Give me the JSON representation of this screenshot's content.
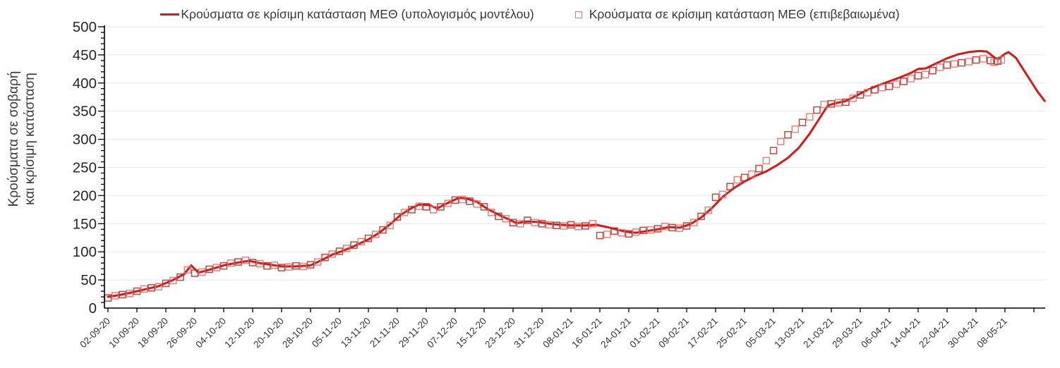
{
  "colors": {
    "line_red": "#dc1717",
    "square_dark": "#b03028",
    "square_light": "#e2736d",
    "grid": "#e7e7e7",
    "axis": "#000000",
    "tick_text": "#262626",
    "xlabel_text": "#333333",
    "legend_text": "#383838",
    "legend_square_border": "#cd7f7c"
  },
  "chart_data": {
    "type": "line",
    "title": "",
    "ylabel": "Κρούσματα σε σοβαρή και κρίσιμη κατάσταση",
    "ylabel_line1": "Κρούσματα σε σοβαρή",
    "ylabel_line2": "και κρίσιμη κατάσταση",
    "xlabel": "",
    "ylim": [
      0,
      500
    ],
    "y_ticks": [
      0,
      50,
      100,
      150,
      200,
      250,
      300,
      350,
      400,
      450,
      500
    ],
    "y_minor_step": 10,
    "grid": "horizontal gridlines every 50, light gray",
    "legend_position": "top-center",
    "x_tick_labels": [
      "02-09-20",
      "10-09-20",
      "18-09-20",
      "26-09-20",
      "04-10-20",
      "12-10-20",
      "20-10-20",
      "28-10-20",
      "05-11-20",
      "13-11-20",
      "21-11-20",
      "29-11-20",
      "07-12-20",
      "15-12-20",
      "23-12-20",
      "31-12-20",
      "08-01-21",
      "16-01-21",
      "24-01-21",
      "01-02-21",
      "09-02-21",
      "17-02-21",
      "25-02-21",
      "05-03-21",
      "13-03-21",
      "21-03-21",
      "29-03-21",
      "06-04-21",
      "14-04-21",
      "22-04-21",
      "30-04-21",
      "08-05-21"
    ],
    "unlabeled_extra_tick": "16-05-21",
    "series": [
      {
        "name": "Κρούσματα σε κρίσιμη κατάσταση ΜΕΘ (υπολογισμός μοντέλου)",
        "kind": "line",
        "points": [
          [
            "02-09-20",
            20
          ],
          [
            "05-09-20",
            23
          ],
          [
            "08-09-20",
            27
          ],
          [
            "12-09-20",
            33
          ],
          [
            "16-09-20",
            39
          ],
          [
            "20-09-20",
            50
          ],
          [
            "23-09-20",
            60
          ],
          [
            "25-09-20",
            76
          ],
          [
            "27-09-20",
            63
          ],
          [
            "30-09-20",
            68
          ],
          [
            "04-10-20",
            76
          ],
          [
            "08-10-20",
            81
          ],
          [
            "11-10-20",
            84
          ],
          [
            "14-10-20",
            80
          ],
          [
            "17-10-20",
            77
          ],
          [
            "20-10-20",
            74
          ],
          [
            "24-10-20",
            74
          ],
          [
            "28-10-20",
            76
          ],
          [
            "31-10-20",
            85
          ],
          [
            "03-11-20",
            95
          ],
          [
            "06-11-20",
            102
          ],
          [
            "09-11-20",
            110
          ],
          [
            "13-11-20",
            122
          ],
          [
            "16-11-20",
            134
          ],
          [
            "19-11-20",
            149
          ],
          [
            "22-11-20",
            166
          ],
          [
            "25-11-20",
            178
          ],
          [
            "27-11-20",
            184
          ],
          [
            "30-11-20",
            183
          ],
          [
            "02-12-20",
            177
          ],
          [
            "04-12-20",
            184
          ],
          [
            "06-12-20",
            190
          ],
          [
            "08-12-20",
            196
          ],
          [
            "10-12-20",
            195
          ],
          [
            "13-12-20",
            189
          ],
          [
            "16-12-20",
            176
          ],
          [
            "19-12-20",
            166
          ],
          [
            "22-12-20",
            157
          ],
          [
            "24-12-20",
            151
          ],
          [
            "27-12-20",
            154
          ],
          [
            "30-12-20",
            153
          ],
          [
            "02-01-21",
            150
          ],
          [
            "05-01-21",
            148
          ],
          [
            "08-01-21",
            147
          ],
          [
            "12-01-21",
            147
          ],
          [
            "15-01-21",
            148
          ],
          [
            "18-01-21",
            144
          ],
          [
            "21-01-21",
            139
          ],
          [
            "24-01-21",
            135
          ],
          [
            "26-01-21",
            134
          ],
          [
            "29-01-21",
            137
          ],
          [
            "01-02-21",
            140
          ],
          [
            "04-02-21",
            144
          ],
          [
            "07-02-21",
            143
          ],
          [
            "10-02-21",
            149
          ],
          [
            "13-02-21",
            161
          ],
          [
            "16-02-21",
            178
          ],
          [
            "19-02-21",
            198
          ],
          [
            "22-02-21",
            213
          ],
          [
            "25-02-21",
            225
          ],
          [
            "28-02-21",
            235
          ],
          [
            "03-03-21",
            243
          ],
          [
            "06-03-21",
            254
          ],
          [
            "09-03-21",
            267
          ],
          [
            "12-03-21",
            285
          ],
          [
            "15-03-21",
            310
          ],
          [
            "18-03-21",
            340
          ],
          [
            "20-03-21",
            360
          ],
          [
            "22-03-21",
            364
          ],
          [
            "25-03-21",
            368
          ],
          [
            "28-03-21",
            378
          ],
          [
            "31-03-21",
            388
          ],
          [
            "03-04-21",
            396
          ],
          [
            "06-04-21",
            403
          ],
          [
            "09-04-21",
            410
          ],
          [
            "12-04-21",
            418
          ],
          [
            "14-04-21",
            425
          ],
          [
            "16-04-21",
            426
          ],
          [
            "19-04-21",
            435
          ],
          [
            "22-04-21",
            444
          ],
          [
            "25-04-21",
            451
          ],
          [
            "28-04-21",
            455
          ],
          [
            "01-05-21",
            457
          ],
          [
            "03-05-21",
            456
          ],
          [
            "05-05-21",
            446
          ],
          [
            "06-05-21",
            442
          ],
          [
            "08-05-21",
            452
          ],
          [
            "09-05-21",
            455
          ],
          [
            "11-05-21",
            445
          ],
          [
            "13-05-21",
            425
          ],
          [
            "15-05-21",
            405
          ],
          [
            "17-05-21",
            385
          ],
          [
            "19-05-21",
            368
          ]
        ]
      },
      {
        "name": "Κρούσματα σε κρίσιμη κατάσταση ΜΕΘ (επιβεβαιωμένα)",
        "kind": "scatter-open-square",
        "points": [
          [
            "02-09-20",
            18
          ],
          [
            "04-09-20",
            22
          ],
          [
            "06-09-20",
            24
          ],
          [
            "08-09-20",
            26
          ],
          [
            "10-09-20",
            30
          ],
          [
            "12-09-20",
            34
          ],
          [
            "14-09-20",
            36
          ],
          [
            "16-09-20",
            38
          ],
          [
            "18-09-20",
            44
          ],
          [
            "20-09-20",
            49
          ],
          [
            "22-09-20",
            55
          ],
          [
            "24-09-20",
            68
          ],
          [
            "26-09-20",
            62
          ],
          [
            "28-09-20",
            64
          ],
          [
            "30-09-20",
            69
          ],
          [
            "02-10-20",
            72
          ],
          [
            "04-10-20",
            75
          ],
          [
            "06-10-20",
            80
          ],
          [
            "08-10-20",
            82
          ],
          [
            "10-10-20",
            85
          ],
          [
            "12-10-20",
            81
          ],
          [
            "14-10-20",
            79
          ],
          [
            "16-10-20",
            75
          ],
          [
            "18-10-20",
            76
          ],
          [
            "20-10-20",
            72
          ],
          [
            "22-10-20",
            73
          ],
          [
            "24-10-20",
            75
          ],
          [
            "26-10-20",
            74
          ],
          [
            "28-10-20",
            77
          ],
          [
            "30-10-20",
            82
          ],
          [
            "01-11-20",
            90
          ],
          [
            "03-11-20",
            96
          ],
          [
            "05-11-20",
            101
          ],
          [
            "07-11-20",
            106
          ],
          [
            "09-11-20",
            112
          ],
          [
            "11-11-20",
            118
          ],
          [
            "13-11-20",
            124
          ],
          [
            "15-11-20",
            131
          ],
          [
            "17-11-20",
            139
          ],
          [
            "19-11-20",
            147
          ],
          [
            "21-11-20",
            162
          ],
          [
            "23-11-20",
            170
          ],
          [
            "25-11-20",
            175
          ],
          [
            "27-11-20",
            181
          ],
          [
            "29-11-20",
            180
          ],
          [
            "01-12-20",
            175
          ],
          [
            "03-12-20",
            180
          ],
          [
            "05-12-20",
            186
          ],
          [
            "07-12-20",
            192
          ],
          [
            "09-12-20",
            193
          ],
          [
            "11-12-20",
            190
          ],
          [
            "13-12-20",
            185
          ],
          [
            "15-12-20",
            180
          ],
          [
            "17-12-20",
            170
          ],
          [
            "19-12-20",
            163
          ],
          [
            "21-12-20",
            159
          ],
          [
            "23-12-20",
            152
          ],
          [
            "25-12-20",
            150
          ],
          [
            "27-12-20",
            156
          ],
          [
            "29-12-20",
            152
          ],
          [
            "31-12-20",
            150
          ],
          [
            "02-01-21",
            148
          ],
          [
            "04-01-21",
            147
          ],
          [
            "06-01-21",
            146
          ],
          [
            "08-01-21",
            148
          ],
          [
            "10-01-21",
            145
          ],
          [
            "12-01-21",
            146
          ],
          [
            "14-01-21",
            150
          ],
          [
            "16-01-21",
            129
          ],
          [
            "18-01-21",
            131
          ],
          [
            "20-01-21",
            137
          ],
          [
            "22-01-21",
            134
          ],
          [
            "24-01-21",
            132
          ],
          [
            "26-01-21",
            135
          ],
          [
            "28-01-21",
            138
          ],
          [
            "30-01-21",
            139
          ],
          [
            "01-02-21",
            141
          ],
          [
            "03-02-21",
            145
          ],
          [
            "05-02-21",
            143
          ],
          [
            "07-02-21",
            142
          ],
          [
            "09-02-21",
            146
          ],
          [
            "11-02-21",
            152
          ],
          [
            "13-02-21",
            163
          ],
          [
            "15-02-21",
            174
          ],
          [
            "17-02-21",
            197
          ],
          [
            "19-02-21",
            202
          ],
          [
            "21-02-21",
            216
          ],
          [
            "23-02-21",
            228
          ],
          [
            "25-02-21",
            232
          ],
          [
            "27-02-21",
            238
          ],
          [
            "01-03-21",
            248
          ],
          [
            "03-03-21",
            262
          ],
          [
            "05-03-21",
            280
          ],
          [
            "07-03-21",
            296
          ],
          [
            "09-03-21",
            308
          ],
          [
            "11-03-21",
            318
          ],
          [
            "13-03-21",
            330
          ],
          [
            "15-03-21",
            340
          ],
          [
            "17-03-21",
            352
          ],
          [
            "19-03-21",
            362
          ],
          [
            "21-03-21",
            363
          ],
          [
            "23-03-21",
            365
          ],
          [
            "25-03-21",
            366
          ],
          [
            "27-03-21",
            373
          ],
          [
            "29-03-21",
            379
          ],
          [
            "31-03-21",
            383
          ],
          [
            "02-04-21",
            388
          ],
          [
            "04-04-21",
            392
          ],
          [
            "06-04-21",
            394
          ],
          [
            "08-04-21",
            398
          ],
          [
            "10-04-21",
            403
          ],
          [
            "12-04-21",
            408
          ],
          [
            "14-04-21",
            413
          ],
          [
            "16-04-21",
            415
          ],
          [
            "18-04-21",
            422
          ],
          [
            "20-04-21",
            428
          ],
          [
            "22-04-21",
            432
          ],
          [
            "24-04-21",
            434
          ],
          [
            "26-04-21",
            436
          ],
          [
            "28-04-21",
            438
          ],
          [
            "30-04-21",
            441
          ],
          [
            "02-05-21",
            443
          ],
          [
            "04-05-21",
            440
          ],
          [
            "05-05-21",
            437
          ],
          [
            "06-05-21",
            439
          ],
          [
            "07-05-21",
            441
          ]
        ]
      }
    ]
  }
}
